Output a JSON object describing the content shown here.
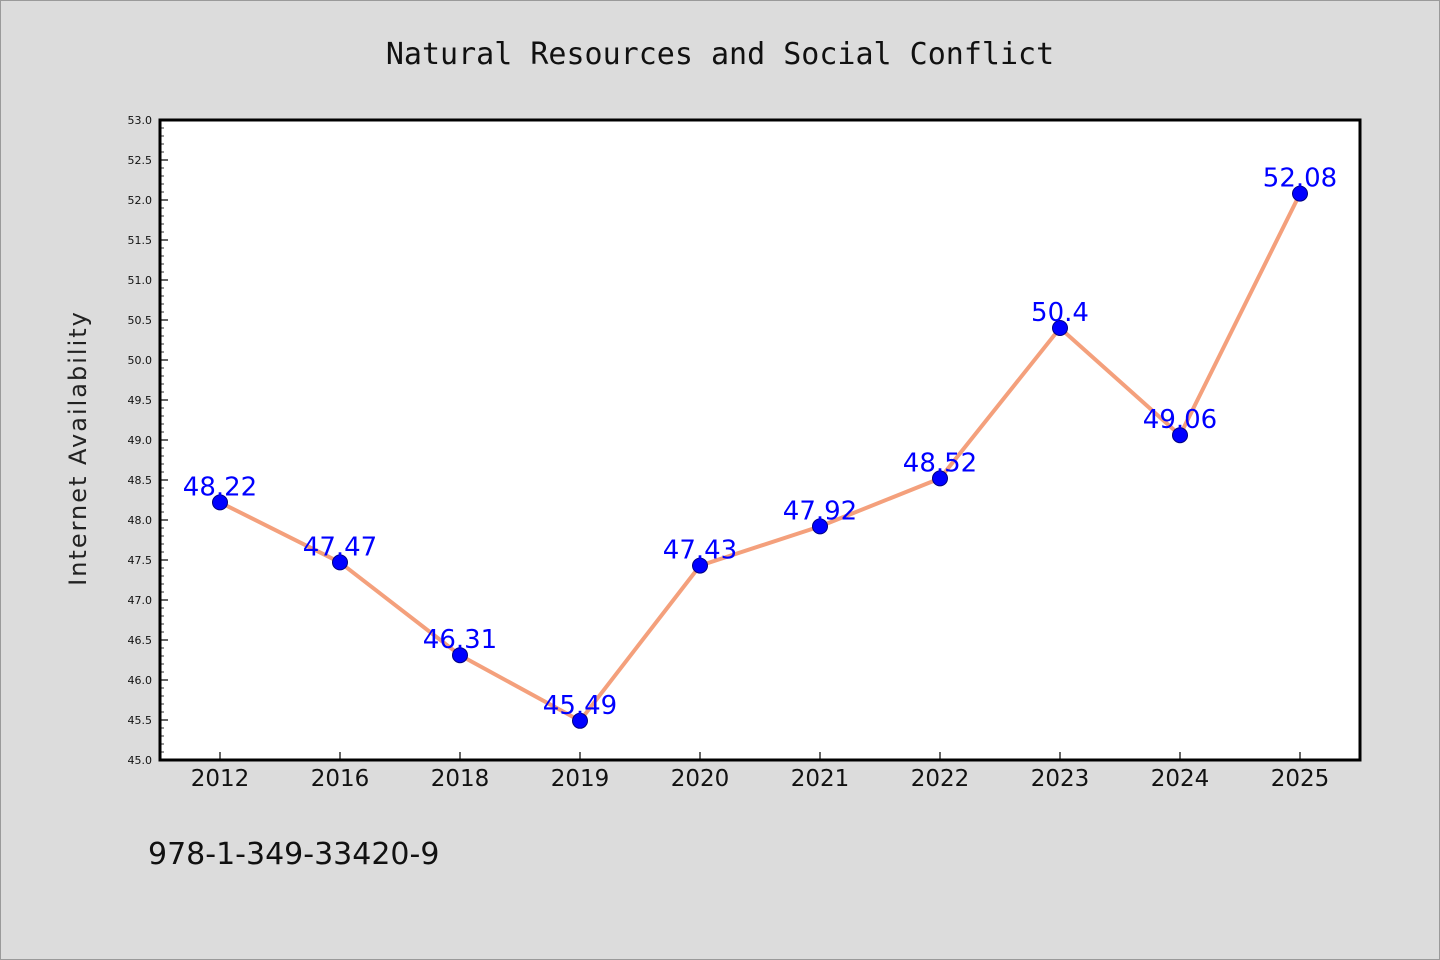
{
  "chart_data": {
    "type": "line",
    "title": "Natural Resources and Social Conflict",
    "xlabel": "",
    "ylabel": "Internet Availability",
    "categories": [
      "2012",
      "2016",
      "2018",
      "2019",
      "2020",
      "2021",
      "2022",
      "2023",
      "2024",
      "2025"
    ],
    "series": [
      {
        "values": [
          48.22,
          47.47,
          46.31,
          45.49,
          47.43,
          47.92,
          48.52,
          50.4,
          49.06,
          52.08
        ],
        "data_labels": [
          "48.22",
          "47.47",
          "46.31",
          "45.49",
          "47.43",
          "47.92",
          "48.52",
          "50.4",
          "49.06",
          "52.08"
        ]
      }
    ],
    "ylim": [
      45.0,
      53.0
    ],
    "yticks": [
      "45.0",
      "45.5",
      "46.0",
      "46.5",
      "47.0",
      "47.5",
      "48.0",
      "48.5",
      "49.0",
      "49.5",
      "50.0",
      "50.5",
      "51.0",
      "51.5",
      "52.0",
      "52.5",
      "53.0"
    ],
    "grid": false,
    "legend": "none",
    "colors": {
      "line": "#f4a07c",
      "marker": "#0000ff",
      "marker_edge": "#000080",
      "data_label": "#0000ff",
      "plot_background": "#ffffff",
      "figure_background": "#dcdcdc"
    }
  },
  "footer": {
    "isbn": "978-1-349-33420-9"
  }
}
